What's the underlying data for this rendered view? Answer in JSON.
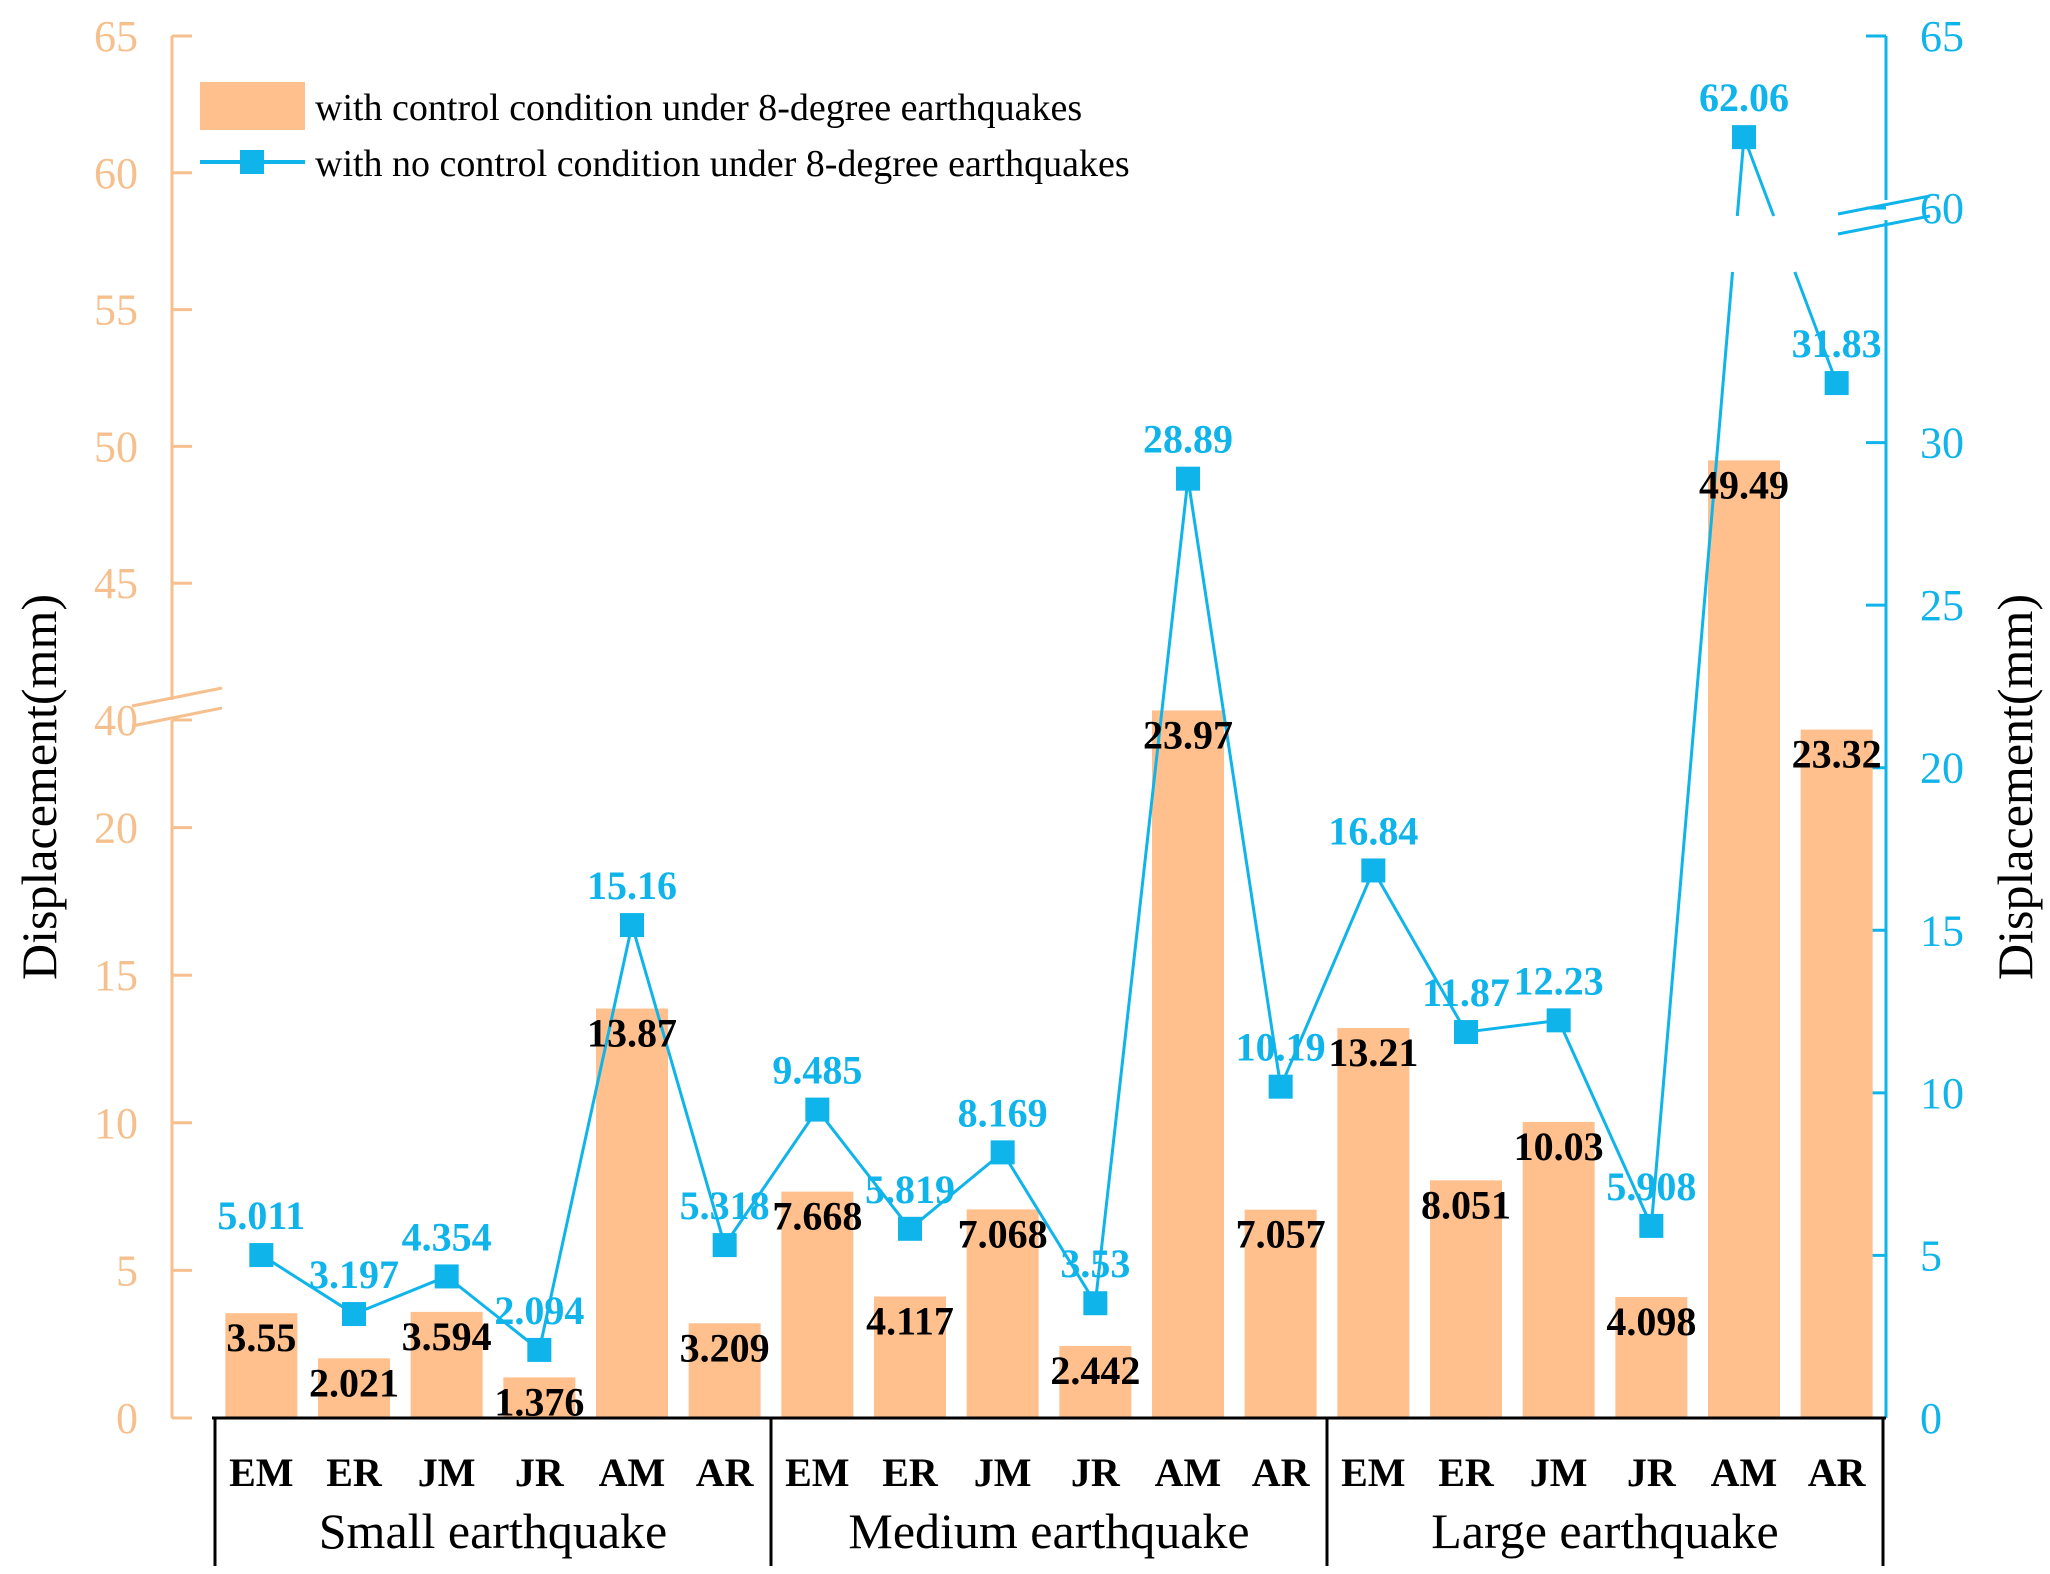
{
  "colors": {
    "bar": "#FFC08E",
    "line": "#0FB4EA",
    "left_axis": "#F6C08E",
    "right_axis": "#0FB4EA"
  },
  "chart_data": {
    "type": "bar+line",
    "categories": [
      "EM",
      "ER",
      "JM",
      "JR",
      "AM",
      "AR",
      "EM",
      "ER",
      "JM",
      "JR",
      "AM",
      "AR",
      "EM",
      "ER",
      "JM",
      "JR",
      "AM",
      "AR"
    ],
    "groups": [
      "Small earthquake",
      "Medium earthquake",
      "Large earthquake"
    ],
    "group_size": 6,
    "left_axis": {
      "label": "Displacement(mm)",
      "ticks_lower": [
        "0",
        "5",
        "10",
        "15",
        "20"
      ],
      "ticks_upper": [
        "40",
        "45",
        "50",
        "55",
        "60",
        "65"
      ],
      "break": [
        25,
        40
      ]
    },
    "right_axis": {
      "label": "Displacement(mm)",
      "ticks_lower": [
        "0",
        "5",
        "10",
        "15",
        "20",
        "25",
        "30"
      ],
      "ticks_upper": [
        "60",
        "65"
      ],
      "break": [
        35,
        60
      ]
    },
    "series": [
      {
        "name": "with control condition under 8-degree earthquakes",
        "type": "bar",
        "axis": "left",
        "values": [
          3.55,
          2.021,
          3.594,
          1.376,
          13.87,
          3.209,
          7.668,
          4.117,
          7.068,
          2.442,
          23.97,
          7.057,
          13.21,
          8.051,
          10.03,
          4.098,
          49.49,
          23.32
        ],
        "labels": [
          "3.55",
          "2.021",
          "3.594",
          "1.376",
          "13.87",
          "3.209",
          "7.668",
          "4.117",
          "7.068",
          "2.442",
          "23.97",
          "7.057",
          "13.21",
          "8.051",
          "10.03",
          "4.098",
          "49.49",
          "23.32"
        ]
      },
      {
        "name": "with no control condition under 8-degree earthquakes",
        "type": "line",
        "axis": "right",
        "values": [
          5.011,
          3.197,
          4.354,
          2.094,
          15.16,
          5.318,
          9.485,
          5.819,
          8.169,
          3.53,
          28.89,
          10.19,
          16.84,
          11.87,
          12.23,
          5.908,
          62.06,
          31.83
        ],
        "labels": [
          "5.011",
          "3.197",
          "4.354",
          "2.094",
          "15.16",
          "5.318",
          "9.485",
          "5.819",
          "8.169",
          "3.53",
          "28.89",
          "10.19",
          "16.84",
          "11.87",
          "12.23",
          "5.908",
          "62.06",
          "31.83"
        ]
      }
    ]
  }
}
